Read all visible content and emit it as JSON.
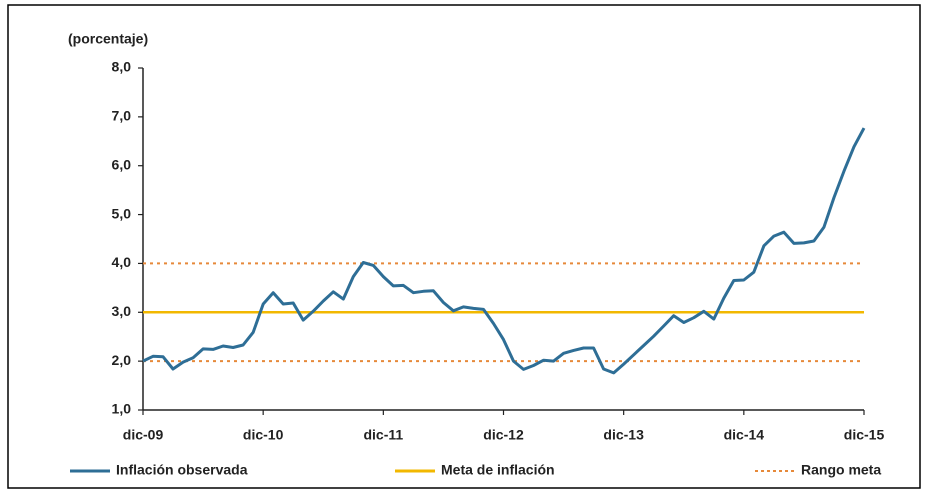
{
  "chart_data": {
    "type": "line",
    "y_label": "(porcentaje)",
    "categories": [
      "dic-09",
      null,
      null,
      null,
      null,
      null,
      null,
      null,
      null,
      null,
      null,
      null,
      "dic-10",
      null,
      null,
      null,
      null,
      null,
      null,
      null,
      null,
      null,
      null,
      null,
      "dic-11",
      null,
      null,
      null,
      null,
      null,
      null,
      null,
      null,
      null,
      null,
      null,
      "dic-12",
      null,
      null,
      null,
      null,
      null,
      null,
      null,
      null,
      null,
      null,
      null,
      "dic-13",
      null,
      null,
      null,
      null,
      null,
      null,
      null,
      null,
      null,
      null,
      null,
      "dic-14",
      null,
      null,
      null,
      null,
      null,
      null,
      null,
      null,
      null,
      null,
      null,
      "dic-15"
    ],
    "series": [
      {
        "name": "Inflación observada",
        "color": "#2e6e96",
        "values": [
          2.0,
          2.1,
          2.09,
          1.84,
          1.98,
          2.07,
          2.25,
          2.24,
          2.31,
          2.28,
          2.33,
          2.59,
          3.17,
          3.4,
          3.17,
          3.19,
          2.84,
          3.02,
          3.23,
          3.42,
          3.27,
          3.73,
          4.02,
          3.96,
          3.73,
          3.54,
          3.55,
          3.4,
          3.43,
          3.44,
          3.2,
          3.03,
          3.11,
          3.08,
          3.06,
          2.77,
          2.44,
          2.0,
          1.83,
          1.91,
          2.02,
          2.0,
          2.16,
          2.22,
          2.27,
          2.27,
          1.84,
          1.76,
          1.94,
          2.13,
          2.32,
          2.51,
          2.72,
          2.93,
          2.79,
          2.89,
          3.02,
          2.86,
          3.29,
          3.65,
          3.66,
          3.82,
          4.36,
          4.56,
          4.64,
          4.41,
          4.42,
          4.46,
          4.74,
          5.35,
          5.89,
          6.39,
          6.77
        ]
      }
    ],
    "reference_lines": [
      {
        "name": "Meta de inflación",
        "color": "#f2b800",
        "values": [
          3
        ],
        "dashed": false
      },
      {
        "name": "Rango meta",
        "color": "#e6893a",
        "values": [
          2,
          4
        ],
        "dashed": true
      }
    ],
    "ylim": [
      1,
      8
    ],
    "yticks": [
      {
        "value": 1,
        "label": "1,0"
      },
      {
        "value": 2,
        "label": "2,0"
      },
      {
        "value": 3,
        "label": "3,0"
      },
      {
        "value": 4,
        "label": "4,0"
      },
      {
        "value": 5,
        "label": "5,0"
      },
      {
        "value": 6,
        "label": "6,0"
      },
      {
        "value": 7,
        "label": "7,0"
      },
      {
        "value": 8,
        "label": "8,0"
      }
    ]
  }
}
